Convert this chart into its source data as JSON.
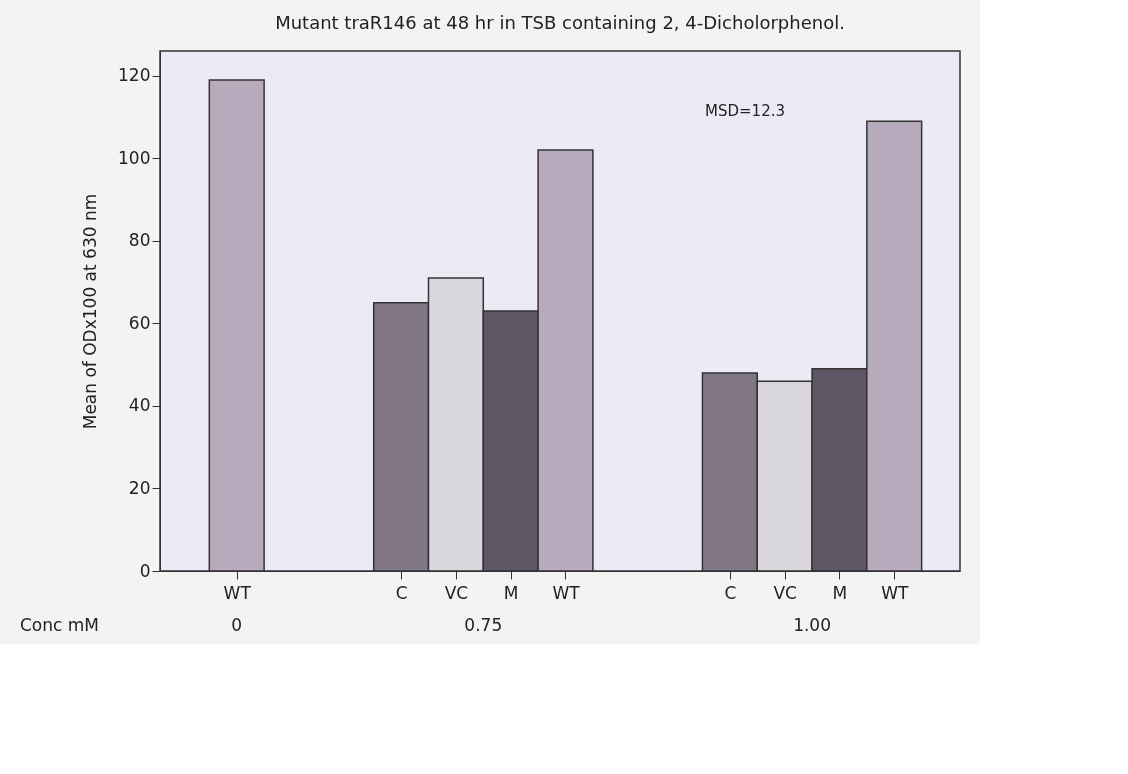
{
  "chart_data": {
    "type": "bar",
    "title": "Mutant traR146 at 48 hr in TSB containing 2, 4-Dicholorphenol.",
    "ylabel": "Mean of ODx100 at 630 nm",
    "xlabel": "Conc mM",
    "categories": [
      "WT",
      null,
      null,
      "C",
      "VC",
      "M",
      "WT",
      null,
      null,
      "C",
      "VC",
      "M",
      "WT"
    ],
    "values": [
      119,
      null,
      null,
      65,
      71,
      63,
      102,
      null,
      null,
      48,
      46,
      49,
      109
    ],
    "colors": [
      "#b8aabd",
      null,
      null,
      "#807685",
      "#d9d6de",
      "#5e5664",
      "#b8aabd",
      null,
      null,
      "#807685",
      "#d9d6de",
      "#5e5664",
      "#b8aabd"
    ],
    "annotations": [
      "0",
      "0.75",
      "1.00",
      "MSD=12.3"
    ],
    "ylim": [
      0,
      126
    ],
    "yticks": [
      0,
      20,
      40,
      60,
      80,
      100,
      120
    ],
    "grid": false
  }
}
